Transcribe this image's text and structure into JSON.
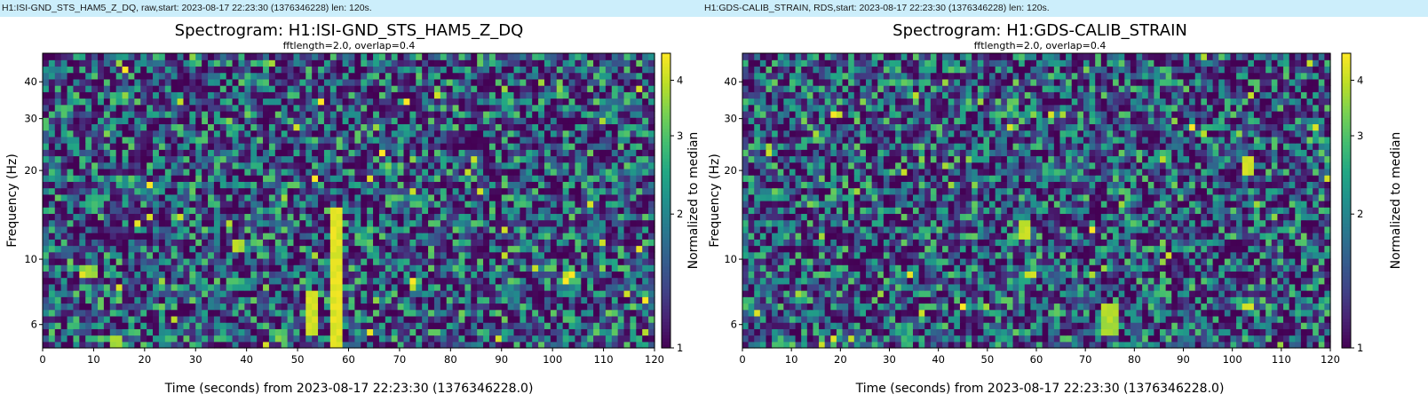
{
  "panels": [
    {
      "header": "H1:ISI-GND_STS_HAM5_Z_DQ, raw,start: 2023-08-17 22:23:30 (1376346228) len: 120s.",
      "title": "Spectrogram: H1:ISI-GND_STS_HAM5_Z_DQ",
      "subtitle": "fftlength=2.0, overlap=0.4",
      "xlabel": "Time (seconds) from 2023-08-17 22:23:30 (1376346228.0)",
      "ylabel": "Frequency (Hz)",
      "clabel": "Normalized to median"
    },
    {
      "header": "H1:GDS-CALIB_STRAIN, RDS,start: 2023-08-17 22:23:30 (1376346228) len: 120s.",
      "title": "Spectrogram: H1:GDS-CALIB_STRAIN",
      "subtitle": "fftlength=2.0, overlap=0.4",
      "xlabel": "Time (seconds) from 2023-08-17 22:23:30 (1376346228.0)",
      "ylabel": "Frequency (Hz)",
      "clabel": "Normalized to median"
    }
  ],
  "chart_data": [
    {
      "type": "heatmap",
      "title": "Spectrogram: H1:ISI-GND_STS_HAM5_Z_DQ",
      "subtitle": "fftlength=2.0, overlap=0.4",
      "xlabel": "Time (seconds) from 2023-08-17 22:23:30 (1376346228.0)",
      "ylabel": "Frequency (Hz)",
      "colorbar_label": "Normalized to median",
      "xlim": [
        0,
        120
      ],
      "ylim": [
        5,
        50
      ],
      "yscale": "log",
      "clim": [
        1,
        4.6
      ],
      "cscale": "log",
      "colormap": "viridis",
      "x_ticks": [
        0,
        10,
        20,
        30,
        40,
        50,
        60,
        70,
        80,
        90,
        100,
        110,
        120
      ],
      "y_ticks": [
        6,
        10,
        20,
        30,
        40
      ],
      "c_ticks": [
        1,
        2,
        3,
        4
      ],
      "features": [
        {
          "t": 58,
          "f_range": [
            5,
            15
          ],
          "value": 4.5
        },
        {
          "t": 53,
          "f_range": [
            5.5,
            8
          ],
          "value": 4.3
        },
        {
          "t": 38,
          "f_range": [
            10.5,
            11.5
          ],
          "value": 4.0
        },
        {
          "t": 9,
          "f_range": [
            8.5,
            9.5
          ],
          "value": 3.8
        },
        {
          "t": 14,
          "f_range": [
            5,
            5.5
          ],
          "value": 4.0
        }
      ]
    },
    {
      "type": "heatmap",
      "title": "Spectrogram: H1:GDS-CALIB_STRAIN",
      "subtitle": "fftlength=2.0, overlap=0.4",
      "xlabel": "Time (seconds) from 2023-08-17 22:23:30 (1376346228.0)",
      "ylabel": "Frequency (Hz)",
      "colorbar_label": "Normalized to median",
      "xlim": [
        0,
        120
      ],
      "ylim": [
        5,
        50
      ],
      "yscale": "log",
      "clim": [
        1,
        4.6
      ],
      "cscale": "log",
      "colormap": "viridis",
      "x_ticks": [
        0,
        10,
        20,
        30,
        40,
        50,
        60,
        70,
        80,
        90,
        100,
        110,
        120
      ],
      "y_ticks": [
        6,
        10,
        20,
        30,
        40
      ],
      "c_ticks": [
        1,
        2,
        3,
        4
      ],
      "features": [
        {
          "t": 58,
          "f_range": [
            12,
            13.5
          ],
          "value": 4.2
        },
        {
          "t": 59,
          "f_range": [
            8.5,
            9
          ],
          "value": 4.4
        },
        {
          "t": 75,
          "f_range": [
            5.5,
            7
          ],
          "value": 4.0
        },
        {
          "t": 103,
          "f_range": [
            19.5,
            23
          ],
          "value": 4.3
        }
      ]
    }
  ]
}
